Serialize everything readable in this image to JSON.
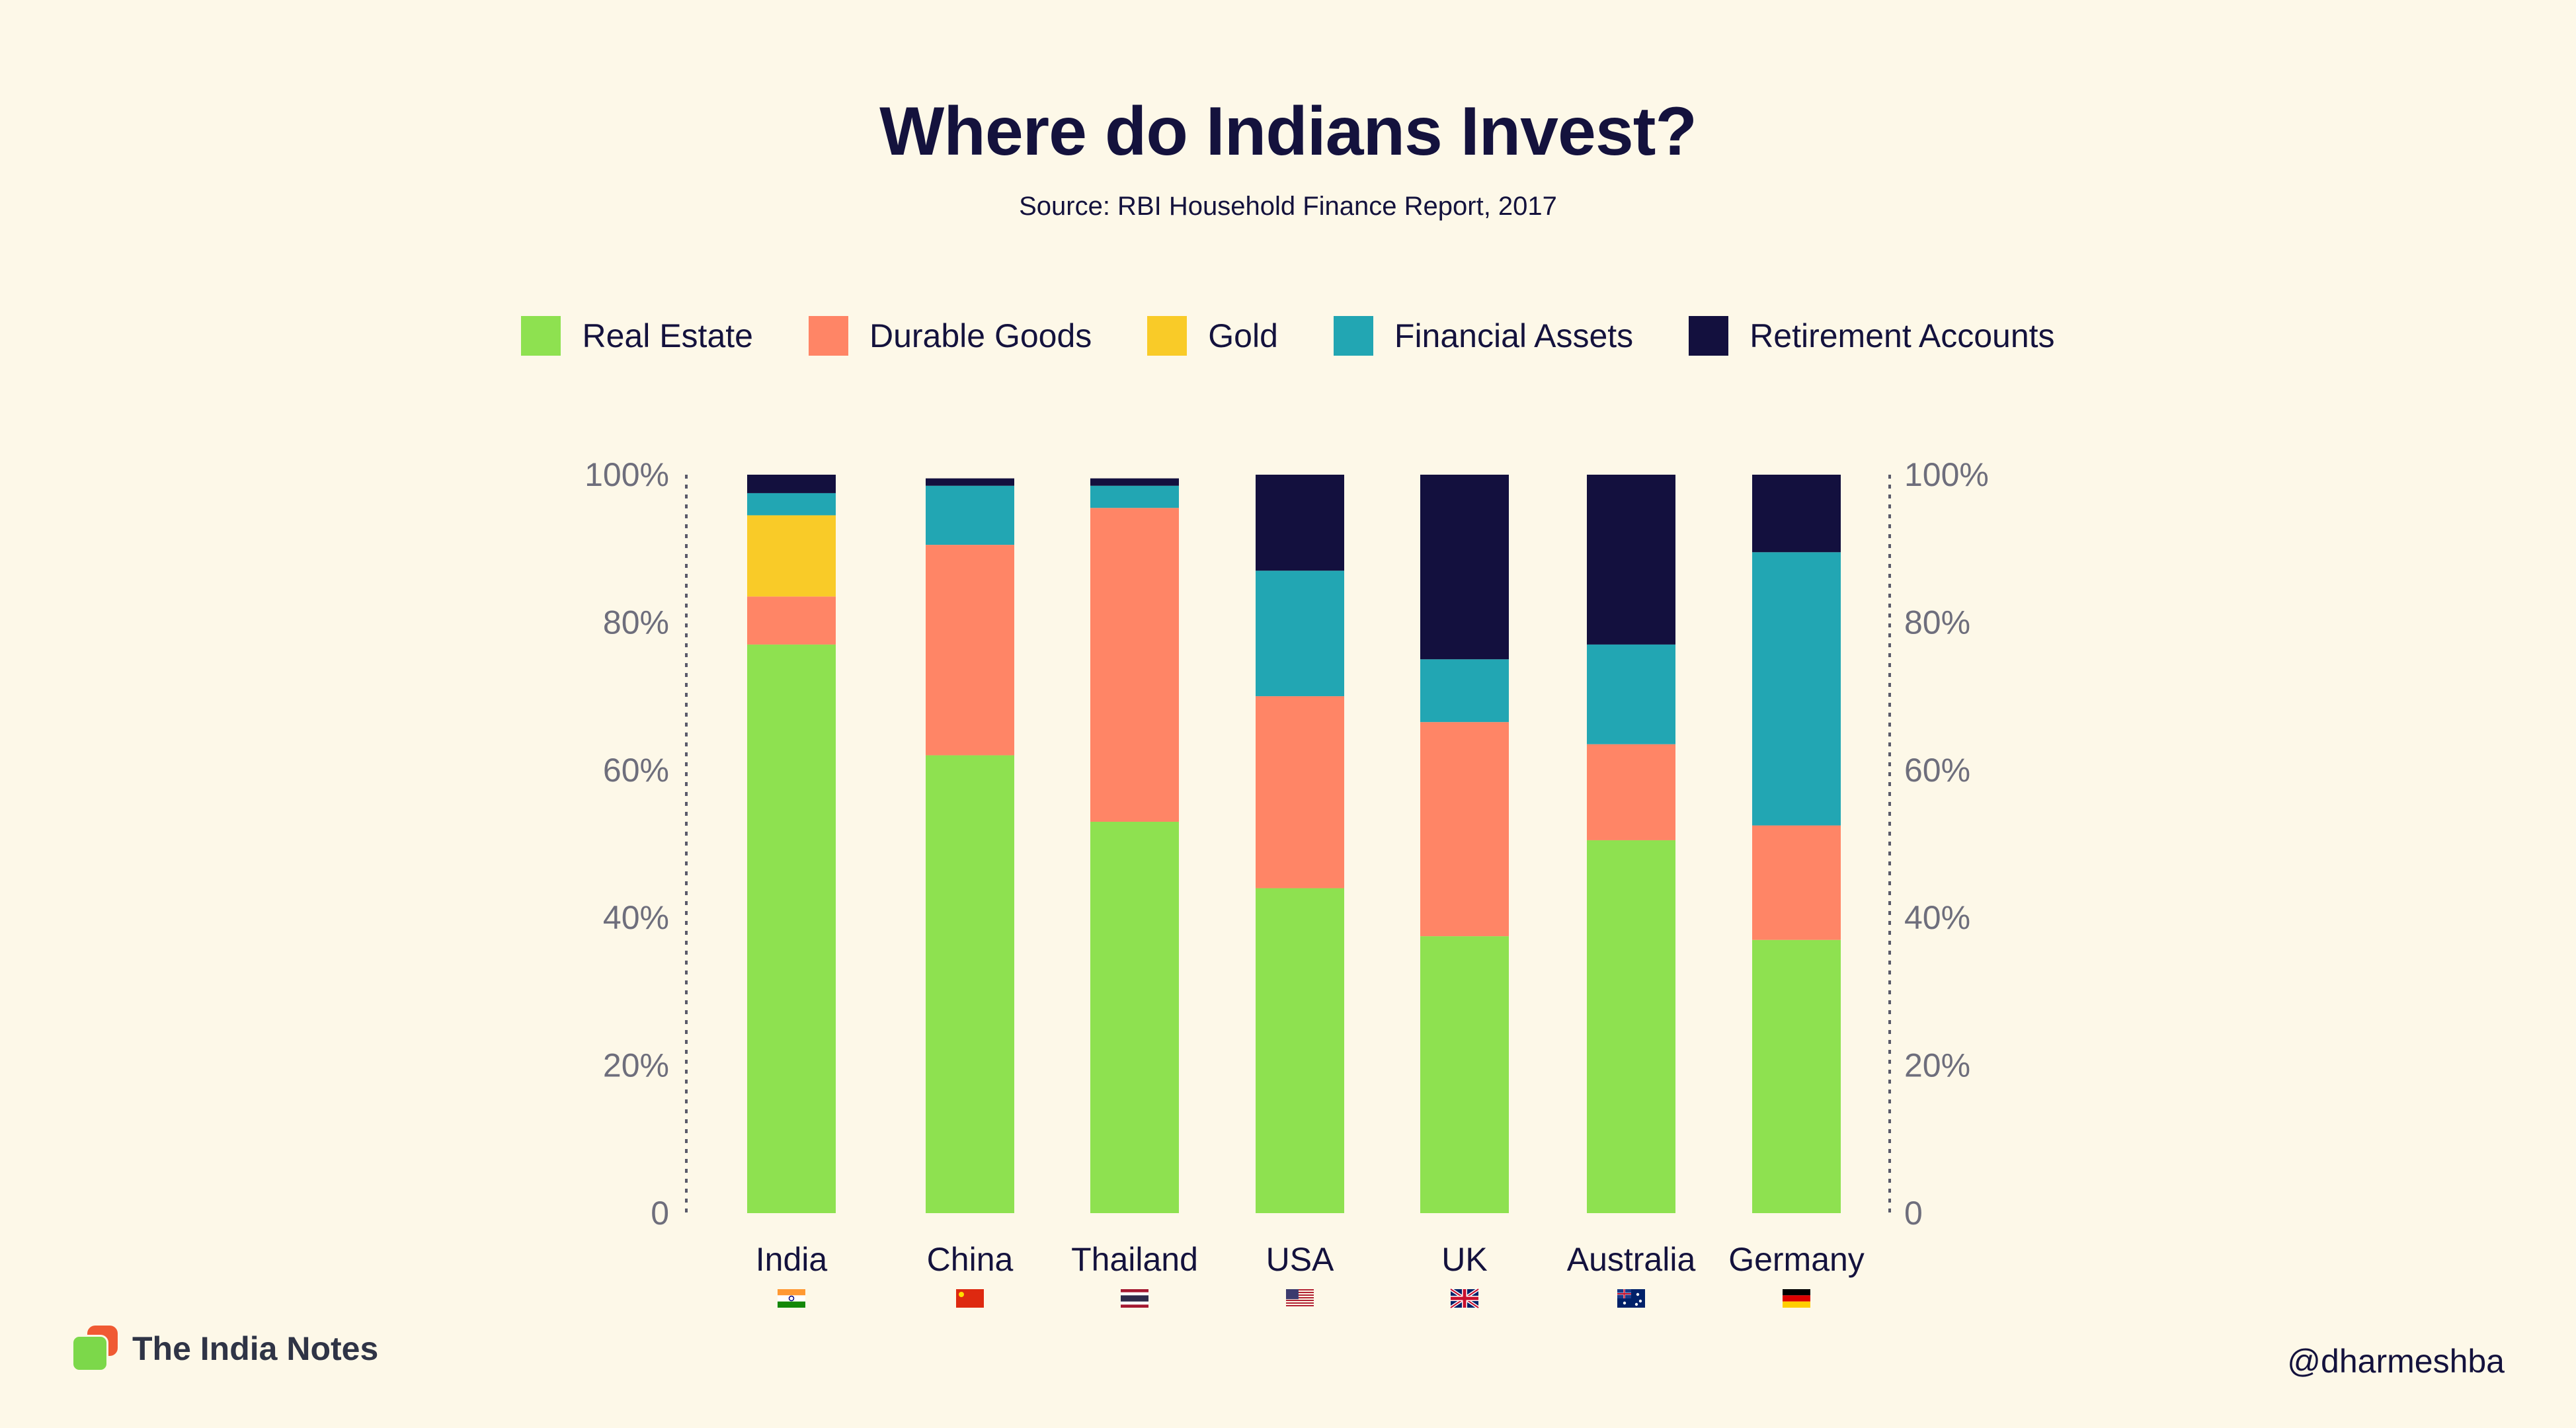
{
  "title": "Where do Indians Invest?",
  "subtitle": "Source: RBI Household Finance Report, 2017",
  "brand": {
    "name": "The India Notes",
    "logo_icon": "stacked-squares-logo-icon"
  },
  "handle": "@dharmeshba",
  "chart_data": {
    "type": "bar",
    "stacked": true,
    "categories": [
      "India",
      "China",
      "Thailand",
      "USA",
      "UK",
      "Australia",
      "Germany"
    ],
    "category_icons": [
      "india-flag-icon",
      "china-flag-icon",
      "thailand-flag-icon",
      "usa-flag-icon",
      "uk-flag-icon",
      "australia-flag-icon",
      "germany-flag-icon"
    ],
    "series": [
      {
        "name": "Real Estate",
        "color": "#8ee150",
        "values": [
          77,
          62,
          53,
          44,
          37.5,
          50.5,
          37
        ]
      },
      {
        "name": "Durable Goods",
        "color": "#ff8566",
        "values": [
          6.5,
          28.5,
          42.5,
          26,
          29,
          13,
          15.5
        ]
      },
      {
        "name": "Gold",
        "color": "#f9cb28",
        "values": [
          11,
          0,
          0,
          0,
          0,
          0,
          0
        ]
      },
      {
        "name": "Financial Assets",
        "color": "#22a6b3",
        "values": [
          3,
          8,
          3,
          17,
          8.5,
          13.5,
          37
        ]
      },
      {
        "name": "Retirement Accounts",
        "color": "#13103e",
        "values": [
          2.5,
          1,
          1,
          13,
          25,
          23,
          10.5
        ]
      }
    ],
    "y_ticks": [
      0,
      20,
      40,
      60,
      80,
      100
    ],
    "y_tick_labels": [
      "0",
      "20%",
      "40%",
      "60%",
      "80%",
      "100%"
    ],
    "ylim": [
      0,
      100
    ],
    "legend_position": "top",
    "grid": false,
    "axis_color": "#6b6b7a",
    "label_color": "#14123d"
  }
}
